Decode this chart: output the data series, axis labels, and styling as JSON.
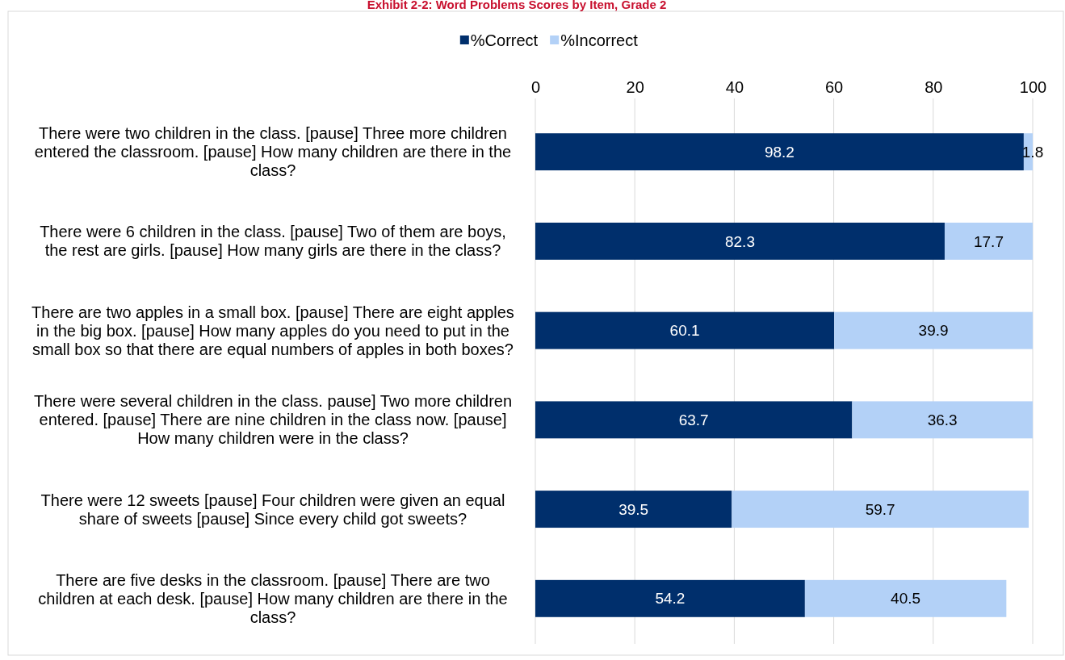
{
  "chart_data": {
    "type": "bar",
    "orientation": "horizontal",
    "stacked": true,
    "title": "Exhibit 2-2: Word Problems Scores by Item, Grade 2",
    "categories": [
      "There were two children in the class. [pause] Three more children entered the classroom. [pause] How many children are there in the class?",
      "There were 6 children in the class. [pause] Two of them are boys, the rest are girls. [pause] How many girls are there in the class?",
      "There are two apples in a small box. [pause] There are eight apples in the big box. [pause] How many apples do you need to put in the small box so that there are equal numbers of apples in both boxes?",
      "There were several children in the class. pause] Two more children entered. [pause] There are nine children in the class now. [pause] How many children were in the class?",
      "There were 12 sweets [pause] Four children were given an equal share of sweets [pause] Since every child got sweets?",
      "There are five desks in the classroom. [pause] There are two children at each desk. [pause] How many children are there in the class?"
    ],
    "series": [
      {
        "name": "%Correct",
        "color": "#002f6c",
        "values": [
          98.2,
          82.3,
          60.1,
          63.7,
          39.5,
          54.2
        ]
      },
      {
        "name": "%Incorrect",
        "color": "#b3d1f7",
        "values": [
          1.8,
          17.7,
          39.9,
          36.3,
          59.7,
          40.5
        ]
      }
    ],
    "xlim": [
      0,
      100
    ],
    "xticks": [
      0,
      20,
      40,
      60,
      80,
      100
    ],
    "grid": "x",
    "legend": "top",
    "data_labels": true
  }
}
